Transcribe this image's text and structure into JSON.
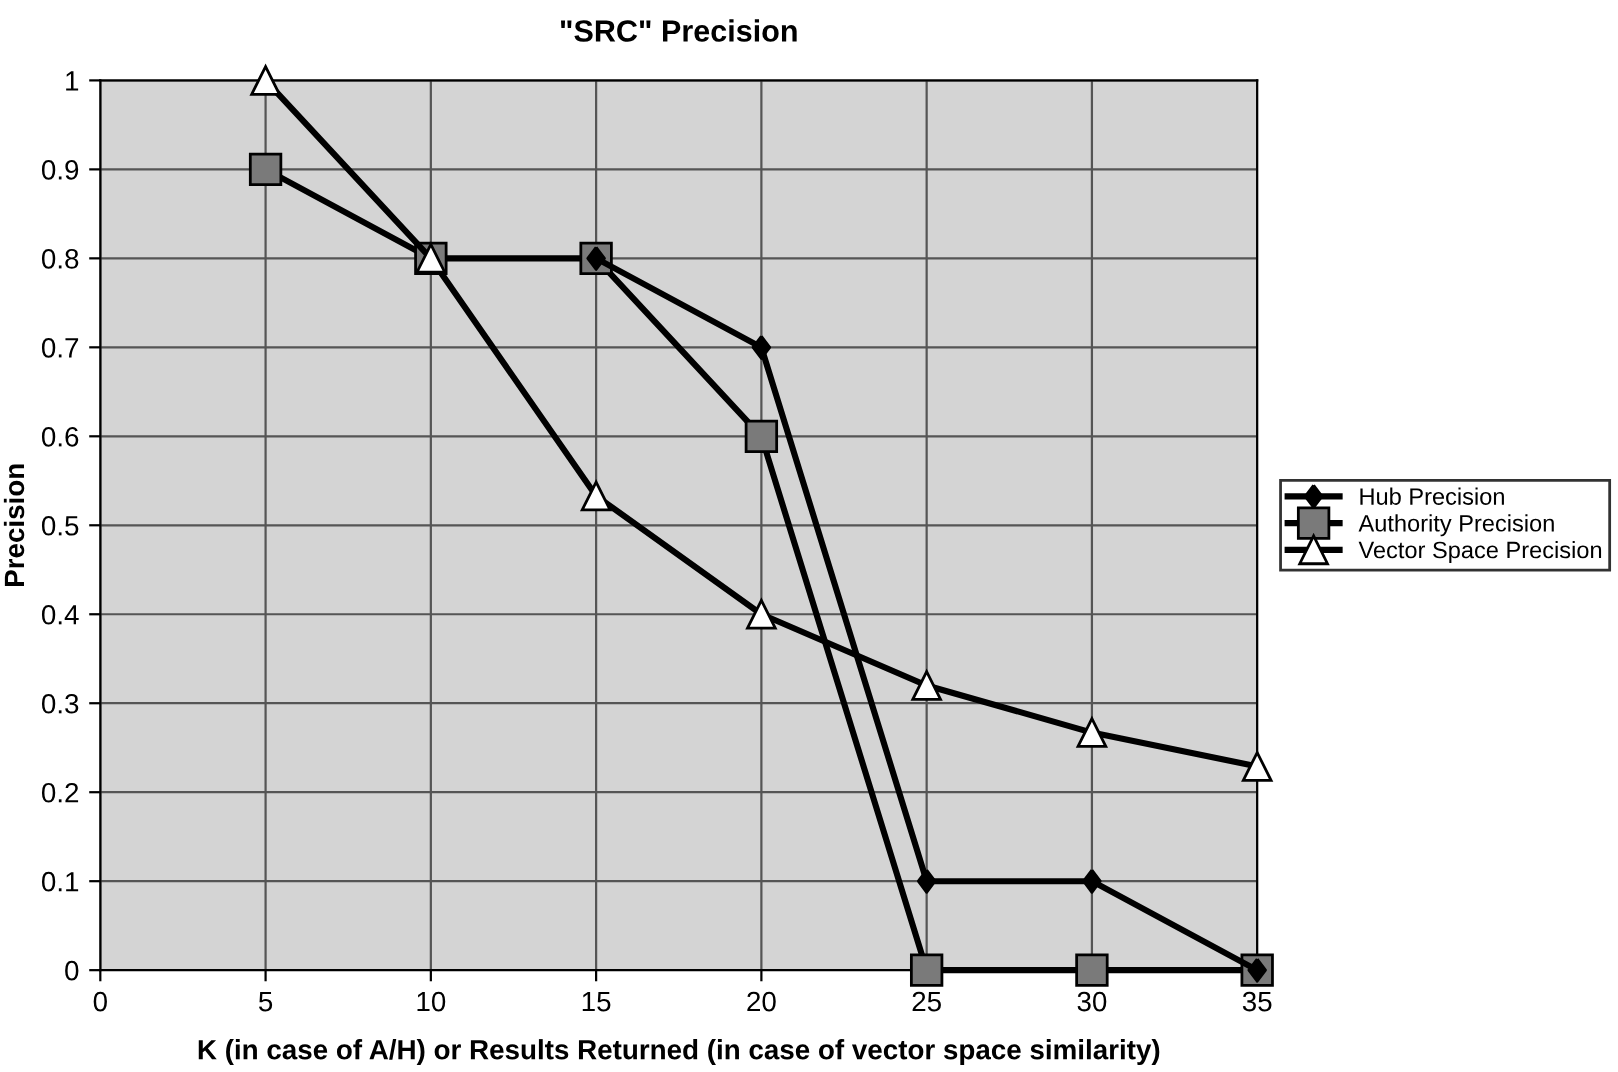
{
  "chart_data": {
    "type": "line",
    "title": "\"SRC\" Precision",
    "xlabel": "K (in case of A/H) or Results Returned (in case of vector space similarity)",
    "ylabel": "Precision",
    "x": [
      5,
      10,
      15,
      20,
      25,
      30,
      35
    ],
    "series": [
      {
        "name": "Hub Precision",
        "color": "#000000",
        "marker": "diamond",
        "values": [
          null,
          null,
          0.8,
          0.7,
          0.1,
          0.1,
          0
        ]
      },
      {
        "name": "Authority Precision",
        "color": "#000000",
        "marker": "square",
        "values": [
          0.9,
          0.8,
          0.8,
          0.6,
          0,
          0,
          0
        ]
      },
      {
        "name": "Vector Space Precision",
        "color": "#000000",
        "marker": "triangle",
        "values": [
          1,
          0.8,
          0.533,
          0.4,
          0.32,
          0.267,
          0.229
        ]
      }
    ],
    "xlim": [
      0,
      35
    ],
    "xticks": [
      0,
      5,
      10,
      15,
      20,
      25,
      30,
      35
    ],
    "ylim": [
      0,
      1
    ],
    "yticks": [
      0,
      0.1,
      0.2,
      0.3,
      0.4,
      0.5,
      0.6,
      0.7,
      0.8,
      0.9,
      1
    ],
    "grid": true,
    "legend": "right",
    "line_style": "solid"
  }
}
